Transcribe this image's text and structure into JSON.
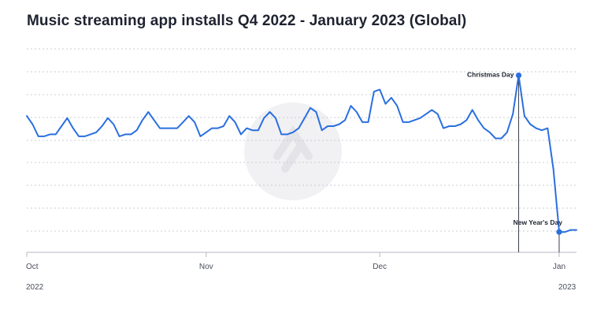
{
  "chart_data": {
    "type": "line",
    "title": "Music streaming app installs Q4 2022 - January 2023 (Global)",
    "xlabel": "",
    "ylabel": "",
    "grid": "horizontal dotted",
    "legend": "none",
    "x_tick_labels": [
      {
        "date": "2022-10-01",
        "label": "Oct"
      },
      {
        "date": "2022-11-01",
        "label": "Nov"
      },
      {
        "date": "2022-12-01",
        "label": "Dec"
      },
      {
        "date": "2023-01-01",
        "label": "Jan"
      }
    ],
    "year_labels": [
      {
        "date": "2022-10-01",
        "label": "2022"
      },
      {
        "date": "2023-01-01",
        "label": "2023"
      }
    ],
    "x_range": [
      "2022-10-01",
      "2023-01-04"
    ],
    "ylim": [
      0,
      100
    ],
    "series": [
      {
        "color": "#2a6fe0",
        "x": [
          "2022-10-01",
          "2022-10-02",
          "2022-10-03",
          "2022-10-04",
          "2022-10-05",
          "2022-10-06",
          "2022-10-07",
          "2022-10-08",
          "2022-10-09",
          "2022-10-10",
          "2022-10-11",
          "2022-10-12",
          "2022-10-13",
          "2022-10-14",
          "2022-10-15",
          "2022-10-16",
          "2022-10-17",
          "2022-10-18",
          "2022-10-19",
          "2022-10-20",
          "2022-10-21",
          "2022-10-22",
          "2022-10-23",
          "2022-10-24",
          "2022-10-25",
          "2022-10-26",
          "2022-10-27",
          "2022-10-28",
          "2022-10-29",
          "2022-10-30",
          "2022-10-31",
          "2022-11-01",
          "2022-11-02",
          "2022-11-03",
          "2022-11-04",
          "2022-11-05",
          "2022-11-06",
          "2022-11-07",
          "2022-11-08",
          "2022-11-09",
          "2022-11-10",
          "2022-11-11",
          "2022-11-12",
          "2022-11-13",
          "2022-11-14",
          "2022-11-15",
          "2022-11-16",
          "2022-11-17",
          "2022-11-18",
          "2022-11-19",
          "2022-11-20",
          "2022-11-21",
          "2022-11-22",
          "2022-11-23",
          "2022-11-24",
          "2022-11-25",
          "2022-11-26",
          "2022-11-27",
          "2022-11-28",
          "2022-11-29",
          "2022-11-30",
          "2022-12-01",
          "2022-12-02",
          "2022-12-03",
          "2022-12-04",
          "2022-12-05",
          "2022-12-06",
          "2022-12-07",
          "2022-12-08",
          "2022-12-09",
          "2022-12-10",
          "2022-12-11",
          "2022-12-12",
          "2022-12-13",
          "2022-12-14",
          "2022-12-15",
          "2022-12-16",
          "2022-12-17",
          "2022-12-18",
          "2022-12-19",
          "2022-12-20",
          "2022-12-21",
          "2022-12-22",
          "2022-12-23",
          "2022-12-24",
          "2022-12-25",
          "2022-12-26",
          "2022-12-27",
          "2022-12-28",
          "2022-12-29",
          "2022-12-30",
          "2022-12-31",
          "2023-01-01",
          "2023-01-02",
          "2023-01-03",
          "2023-01-04"
        ],
        "values": [
          67,
          63,
          57,
          57,
          58,
          58,
          62,
          66,
          61,
          57,
          57,
          58,
          59,
          62,
          66,
          63,
          57,
          58,
          58,
          60,
          65,
          69,
          65,
          61,
          61,
          61,
          61,
          64,
          67,
          64,
          57,
          59,
          61,
          61,
          62,
          67,
          64,
          58,
          61,
          60,
          60,
          66,
          69,
          66,
          58,
          58,
          59,
          61,
          66,
          71,
          69,
          60,
          62,
          62,
          63,
          65,
          72,
          69,
          64,
          64,
          79,
          80,
          73,
          76,
          72,
          64,
          64,
          65,
          66,
          68,
          70,
          68,
          61,
          62,
          62,
          63,
          65,
          70,
          65,
          61,
          59,
          56,
          56,
          59,
          68,
          87,
          67,
          63,
          61,
          60,
          61,
          41,
          10,
          10,
          11,
          11
        ]
      }
    ],
    "annotations": [
      {
        "date": "2022-12-25",
        "label": "Christmas Day"
      },
      {
        "date": "2023-01-01",
        "label": "New Year's Day"
      }
    ]
  }
}
